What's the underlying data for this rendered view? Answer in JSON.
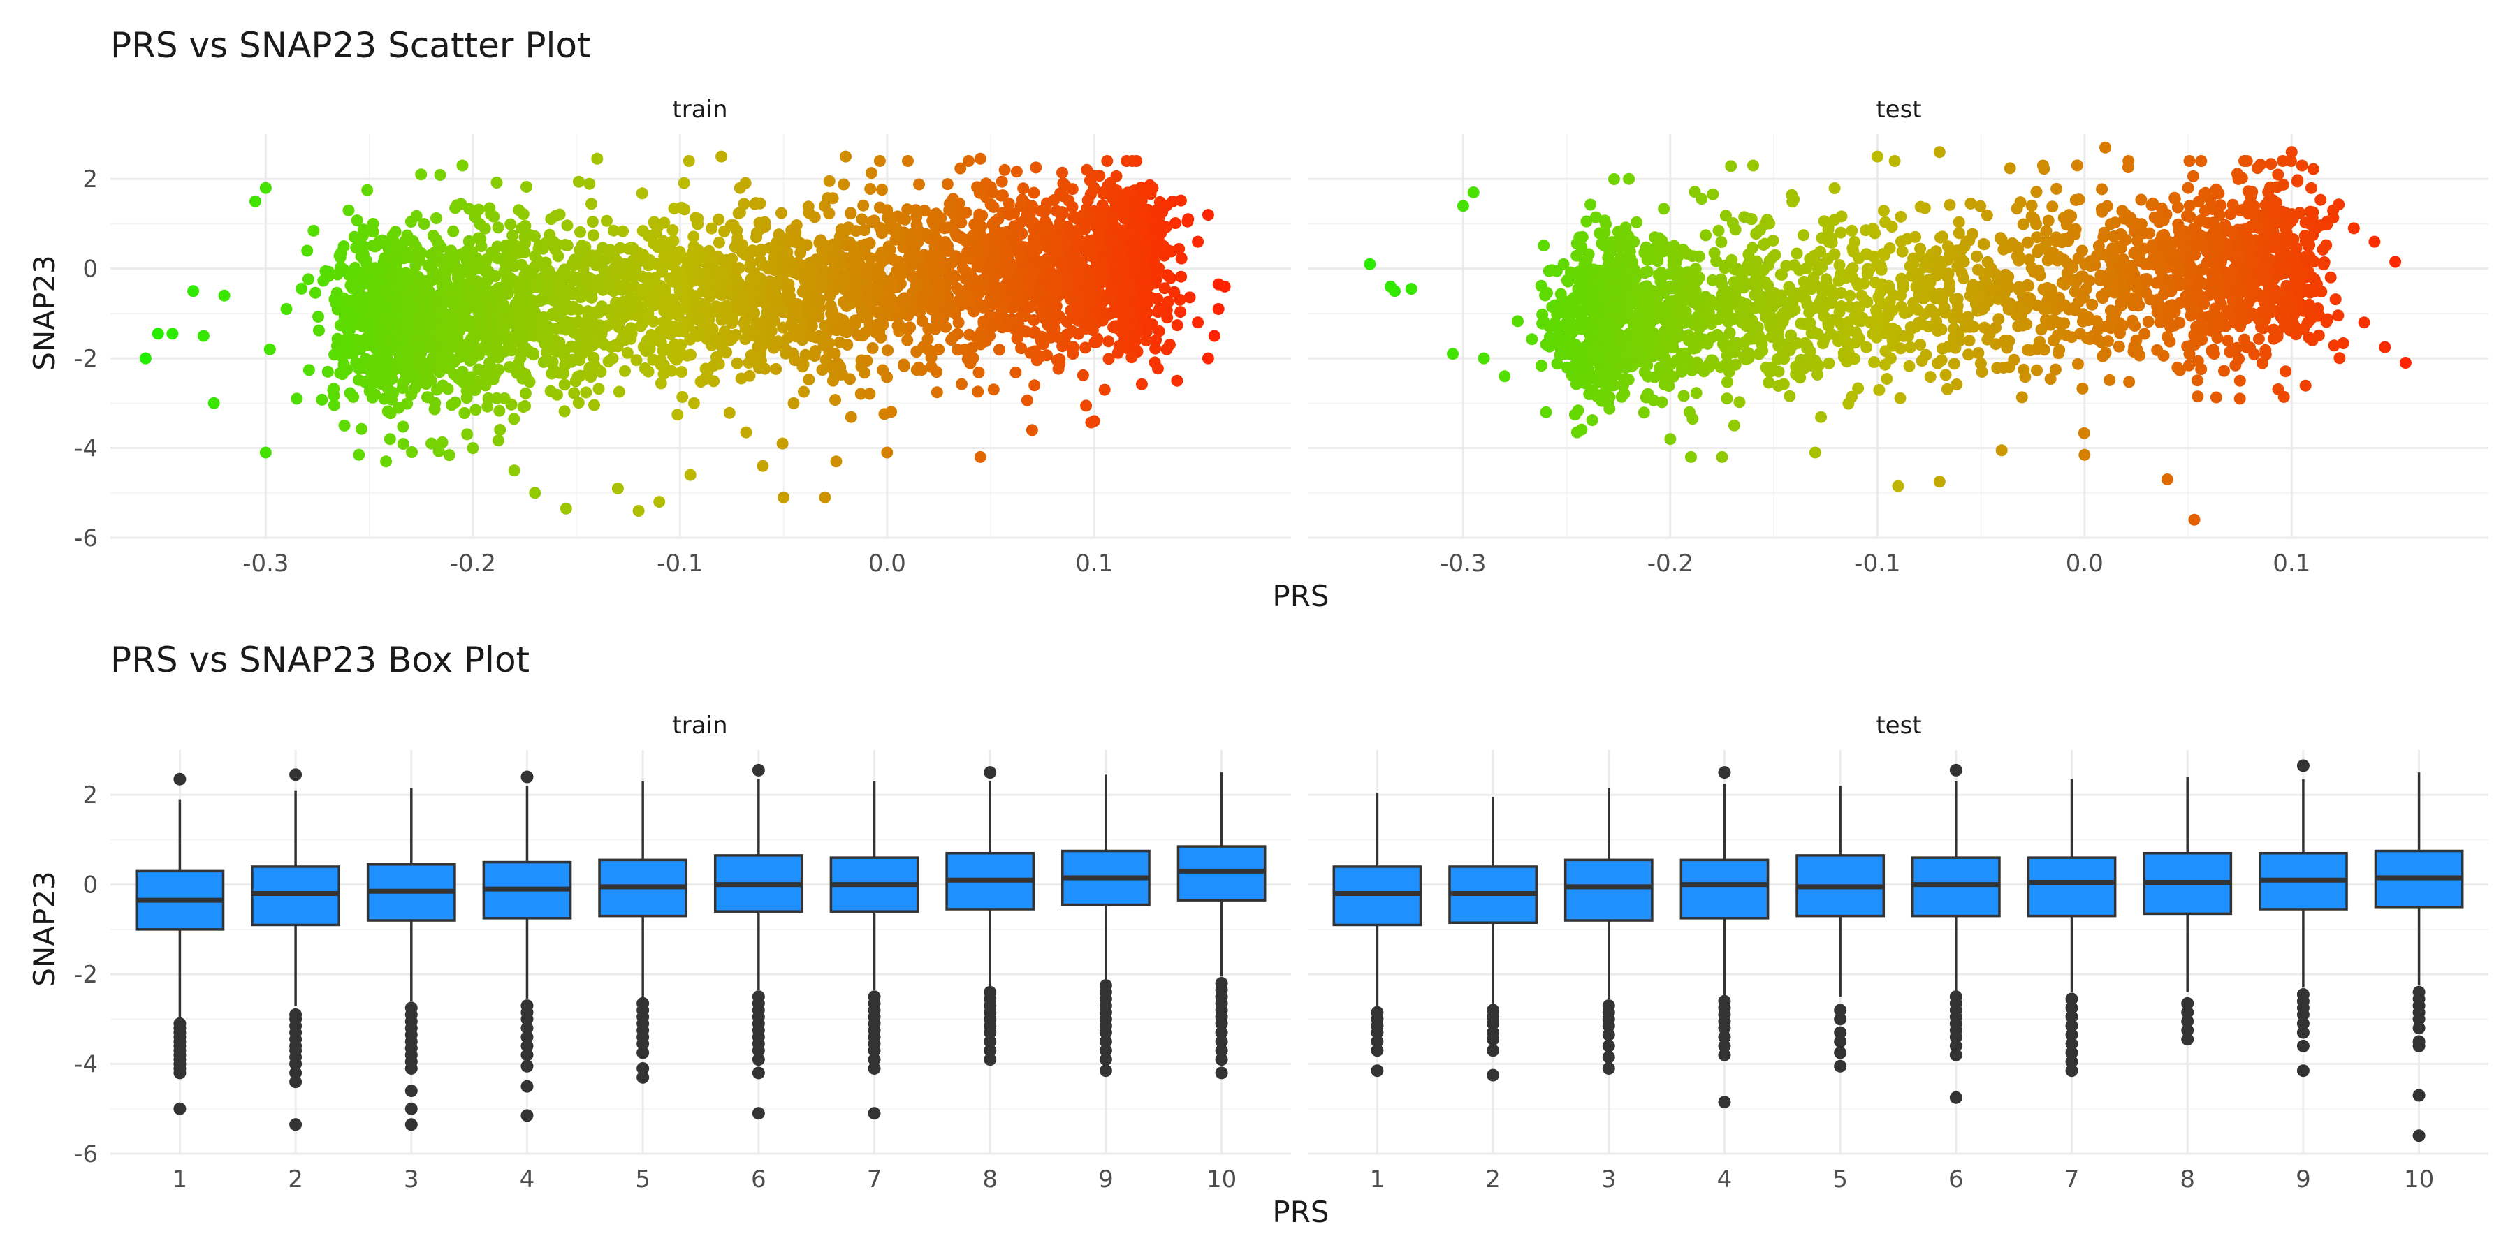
{
  "chart_data": [
    {
      "type": "scatter",
      "title": "PRS vs SNAP23 Scatter Plot",
      "xlabel": "PRS",
      "ylabel": "SNAP23",
      "xlim": [
        -0.375,
        0.195
      ],
      "ylim": [
        -6.0,
        3.0
      ],
      "x_ticks": [
        -0.3,
        -0.2,
        -0.1,
        0.0,
        0.1
      ],
      "x_tick_labels": [
        "-0.3",
        "-0.2",
        "-0.1",
        "0.0",
        "0.1"
      ],
      "y_ticks": [
        -6,
        -4,
        -2,
        0,
        2
      ],
      "y_tick_labels": [
        "-6",
        "-4",
        "-2",
        "0",
        "2"
      ],
      "color_scale": {
        "low": "#22ee00",
        "mid": "#bbbb00",
        "high": "#ff2200",
        "range": [
          -0.36,
          0.16
        ]
      },
      "grid": true,
      "legend": "none",
      "panels": [
        {
          "name": "train",
          "core": {
            "x_range": [
              -0.25,
              0.12
            ],
            "y_center": -0.5,
            "y_sd": 0.95,
            "slope": 3.2,
            "n": 3600
          },
          "points": [
            [
              -0.358,
              -2.0
            ],
            [
              -0.352,
              -1.45
            ],
            [
              -0.345,
              -1.45
            ],
            [
              -0.335,
              -0.5
            ],
            [
              -0.33,
              -1.5
            ],
            [
              -0.325,
              -3.0
            ],
            [
              -0.32,
              -0.6
            ],
            [
              -0.305,
              1.5
            ],
            [
              -0.3,
              1.8
            ],
            [
              -0.3,
              -4.1
            ],
            [
              -0.298,
              -1.8
            ],
            [
              -0.29,
              -0.9
            ],
            [
              -0.285,
              -2.9
            ],
            [
              -0.28,
              0.4
            ],
            [
              -0.27,
              -2.3
            ],
            [
              -0.262,
              -3.5
            ],
            [
              -0.26,
              1.3
            ],
            [
              -0.255,
              -4.15
            ],
            [
              -0.24,
              -3.8
            ],
            [
              -0.225,
              2.1
            ],
            [
              -0.22,
              -3.9
            ],
            [
              -0.205,
              2.3
            ],
            [
              -0.2,
              -4.0
            ],
            [
              -0.18,
              -4.5
            ],
            [
              -0.17,
              -5.0
            ],
            [
              -0.155,
              -5.35
            ],
            [
              -0.14,
              2.45
            ],
            [
              -0.13,
              -4.9
            ],
            [
              -0.12,
              -5.4
            ],
            [
              -0.11,
              -5.2
            ],
            [
              -0.095,
              -4.6
            ],
            [
              -0.08,
              2.5
            ],
            [
              -0.06,
              -4.4
            ],
            [
              -0.05,
              -5.1
            ],
            [
              -0.03,
              -5.1
            ],
            [
              -0.02,
              2.5
            ],
            [
              0.0,
              -4.1
            ],
            [
              0.01,
              2.4
            ],
            [
              0.045,
              -4.2
            ],
            [
              0.045,
              2.45
            ],
            [
              0.07,
              -3.6
            ],
            [
              0.1,
              -3.4
            ],
            [
              0.085,
              1.9
            ],
            [
              0.105,
              -2.7
            ],
            [
              0.12,
              1.5
            ],
            [
              0.13,
              1.3
            ],
            [
              0.135,
              -1.8
            ],
            [
              0.14,
              -2.5
            ],
            [
              0.145,
              1.05
            ],
            [
              0.15,
              0.6
            ],
            [
              0.155,
              -2.0
            ],
            [
              0.155,
              1.2
            ],
            [
              0.16,
              -0.9
            ],
            [
              0.163,
              -0.4
            ],
            [
              0.158,
              -1.5
            ],
            [
              0.16,
              -0.35
            ],
            [
              0.15,
              -1.2
            ]
          ]
        },
        {
          "name": "test",
          "core": {
            "x_range": [
              -0.24,
              0.1
            ],
            "y_center": -0.5,
            "y_sd": 0.95,
            "slope": 3.2,
            "n": 2200
          },
          "points": [
            [
              -0.345,
              0.1
            ],
            [
              -0.335,
              -0.4
            ],
            [
              -0.333,
              -0.5
            ],
            [
              -0.325,
              -0.45
            ],
            [
              -0.305,
              -1.9
            ],
            [
              -0.3,
              1.4
            ],
            [
              -0.295,
              1.7
            ],
            [
              -0.29,
              -2.0
            ],
            [
              -0.28,
              -2.4
            ],
            [
              -0.26,
              -3.2
            ],
            [
              -0.245,
              -3.65
            ],
            [
              -0.22,
              2.0
            ],
            [
              -0.2,
              -3.8
            ],
            [
              -0.19,
              -4.2
            ],
            [
              -0.175,
              -4.2
            ],
            [
              -0.16,
              2.3
            ],
            [
              -0.13,
              -4.1
            ],
            [
              -0.1,
              2.5
            ],
            [
              -0.09,
              -4.85
            ],
            [
              -0.07,
              2.6
            ],
            [
              -0.07,
              -4.75
            ],
            [
              -0.04,
              -4.05
            ],
            [
              -0.02,
              2.3
            ],
            [
              0.01,
              2.7
            ],
            [
              0.0,
              -4.15
            ],
            [
              0.04,
              -4.7
            ],
            [
              0.05,
              1.8
            ],
            [
              0.053,
              -5.6
            ],
            [
              0.075,
              -2.9
            ],
            [
              0.1,
              2.6
            ],
            [
              0.105,
              2.3
            ],
            [
              0.11,
              -1.6
            ],
            [
              0.12,
              1.3
            ],
            [
              0.13,
              0.9
            ],
            [
              0.135,
              -1.2
            ],
            [
              0.14,
              0.6
            ],
            [
              0.145,
              -1.75
            ],
            [
              0.15,
              0.15
            ],
            [
              0.155,
              -2.1
            ]
          ]
        }
      ]
    },
    {
      "type": "box",
      "title": "PRS vs SNAP23 Box Plot",
      "xlabel": "PRS",
      "ylabel": "SNAP23",
      "categories": [
        "1",
        "2",
        "3",
        "4",
        "5",
        "6",
        "7",
        "8",
        "9",
        "10"
      ],
      "ylim": [
        -6.0,
        3.0
      ],
      "y_ticks": [
        -6,
        -4,
        -2,
        0,
        2
      ],
      "y_tick_labels": [
        "-6",
        "-4",
        "-2",
        "0",
        "2"
      ],
      "box_color": "#1e90ff",
      "grid": true,
      "panels": [
        {
          "name": "train",
          "boxes": [
            {
              "q1": -1.0,
              "median": -0.35,
              "q3": 0.3,
              "whisker_low": -2.95,
              "whisker_high": 1.9,
              "outliers": [
                2.35,
                -3.1,
                -3.2,
                -3.3,
                -3.4,
                -3.5,
                -3.6,
                -3.7,
                -3.8,
                -3.9,
                -4.0,
                -4.1,
                -4.2,
                -5.0
              ]
            },
            {
              "q1": -0.9,
              "median": -0.2,
              "q3": 0.4,
              "whisker_low": -2.7,
              "whisker_high": 2.1,
              "outliers": [
                2.45,
                -2.9,
                -3.0,
                -3.15,
                -3.3,
                -3.45,
                -3.6,
                -3.7,
                -3.85,
                -4.0,
                -4.2,
                -4.4,
                -5.35
              ]
            },
            {
              "q1": -0.8,
              "median": -0.15,
              "q3": 0.45,
              "whisker_low": -2.6,
              "whisker_high": 2.15,
              "outliers": [
                -2.75,
                -2.9,
                -3.05,
                -3.2,
                -3.35,
                -3.5,
                -3.65,
                -3.8,
                -3.95,
                -4.1,
                -4.6,
                -5.0,
                -5.35
              ]
            },
            {
              "q1": -0.75,
              "median": -0.1,
              "q3": 0.5,
              "whisker_low": -2.55,
              "whisker_high": 2.2,
              "outliers": [
                2.4,
                -2.7,
                -2.85,
                -3.0,
                -3.2,
                -3.4,
                -3.6,
                -3.8,
                -4.05,
                -4.5,
                -5.15
              ]
            },
            {
              "q1": -0.7,
              "median": -0.05,
              "q3": 0.55,
              "whisker_low": -2.5,
              "whisker_high": 2.3,
              "outliers": [
                -2.65,
                -2.8,
                -2.95,
                -3.1,
                -3.25,
                -3.4,
                -3.55,
                -3.75,
                -4.1,
                -4.3
              ]
            },
            {
              "q1": -0.6,
              "median": 0.0,
              "q3": 0.65,
              "whisker_low": -2.35,
              "whisker_high": 2.35,
              "outliers": [
                2.55,
                -2.5,
                -2.65,
                -2.8,
                -2.95,
                -3.1,
                -3.25,
                -3.4,
                -3.55,
                -3.7,
                -3.9,
                -4.2,
                -5.1
              ]
            },
            {
              "q1": -0.6,
              "median": 0.0,
              "q3": 0.6,
              "whisker_low": -2.35,
              "whisker_high": 2.3,
              "outliers": [
                -2.5,
                -2.65,
                -2.8,
                -2.95,
                -3.1,
                -3.25,
                -3.4,
                -3.55,
                -3.7,
                -3.9,
                -4.1,
                -5.1
              ]
            },
            {
              "q1": -0.55,
              "median": 0.1,
              "q3": 0.7,
              "whisker_low": -2.3,
              "whisker_high": 2.3,
              "outliers": [
                2.5,
                -2.4,
                -2.55,
                -2.7,
                -2.85,
                -3.0,
                -3.15,
                -3.3,
                -3.5,
                -3.7,
                -3.9
              ]
            },
            {
              "q1": -0.45,
              "median": 0.15,
              "q3": 0.75,
              "whisker_low": -2.15,
              "whisker_high": 2.45,
              "outliers": [
                -2.25,
                -2.4,
                -2.55,
                -2.7,
                -2.85,
                -3.0,
                -3.15,
                -3.3,
                -3.5,
                -3.7,
                -3.9,
                -4.15
              ]
            },
            {
              "q1": -0.35,
              "median": 0.3,
              "q3": 0.85,
              "whisker_low": -2.05,
              "whisker_high": 2.5,
              "outliers": [
                -2.2,
                -2.35,
                -2.5,
                -2.65,
                -2.8,
                -2.95,
                -3.1,
                -3.3,
                -3.5,
                -3.7,
                -3.9,
                -4.2
              ]
            }
          ]
        },
        {
          "name": "test",
          "boxes": [
            {
              "q1": -0.9,
              "median": -0.2,
              "q3": 0.4,
              "whisker_low": -2.7,
              "whisker_high": 2.05,
              "outliers": [
                -2.85,
                -3.0,
                -3.15,
                -3.3,
                -3.5,
                -3.7,
                -4.15
              ]
            },
            {
              "q1": -0.85,
              "median": -0.2,
              "q3": 0.4,
              "whisker_low": -2.65,
              "whisker_high": 1.95,
              "outliers": [
                -2.8,
                -2.95,
                -3.1,
                -3.3,
                -3.45,
                -3.7,
                -4.25
              ]
            },
            {
              "q1": -0.8,
              "median": -0.05,
              "q3": 0.55,
              "whisker_low": -2.55,
              "whisker_high": 2.15,
              "outliers": [
                -2.7,
                -2.85,
                -3.0,
                -3.15,
                -3.35,
                -3.6,
                -3.85,
                -4.1
              ]
            },
            {
              "q1": -0.75,
              "median": 0.0,
              "q3": 0.55,
              "whisker_low": -2.5,
              "whisker_high": 2.25,
              "outliers": [
                2.5,
                -2.6,
                -2.75,
                -2.9,
                -3.05,
                -3.2,
                -3.4,
                -3.6,
                -3.8,
                -4.85
              ]
            },
            {
              "q1": -0.7,
              "median": -0.05,
              "q3": 0.65,
              "whisker_low": -2.5,
              "whisker_high": 2.2,
              "outliers": [
                -2.8,
                -3.0,
                -3.3,
                -3.5,
                -3.75,
                -4.05
              ]
            },
            {
              "q1": -0.7,
              "median": 0.0,
              "q3": 0.6,
              "whisker_low": -2.4,
              "whisker_high": 2.3,
              "outliers": [
                2.55,
                -2.5,
                -2.65,
                -2.8,
                -2.95,
                -3.1,
                -3.25,
                -3.4,
                -3.6,
                -3.8,
                -4.75
              ]
            },
            {
              "q1": -0.7,
              "median": 0.05,
              "q3": 0.6,
              "whisker_low": -2.4,
              "whisker_high": 2.35,
              "outliers": [
                -2.55,
                -2.75,
                -2.95,
                -3.15,
                -3.35,
                -3.55,
                -3.75,
                -3.95,
                -4.15
              ]
            },
            {
              "q1": -0.65,
              "median": 0.05,
              "q3": 0.7,
              "whisker_low": -2.4,
              "whisker_high": 2.4,
              "outliers": [
                -2.65,
                -2.85,
                -3.05,
                -3.25,
                -3.45
              ]
            },
            {
              "q1": -0.55,
              "median": 0.1,
              "q3": 0.7,
              "whisker_low": -2.3,
              "whisker_high": 2.35,
              "outliers": [
                2.65,
                -2.45,
                -2.6,
                -2.75,
                -2.9,
                -3.1,
                -3.3,
                -3.6,
                -4.15
              ]
            },
            {
              "q1": -0.5,
              "median": 0.15,
              "q3": 0.75,
              "whisker_low": -2.25,
              "whisker_high": 2.5,
              "outliers": [
                -2.4,
                -2.55,
                -2.7,
                -2.85,
                -3.0,
                -3.2,
                -3.5,
                -3.6,
                -4.7,
                -5.6
              ]
            }
          ]
        }
      ]
    }
  ]
}
